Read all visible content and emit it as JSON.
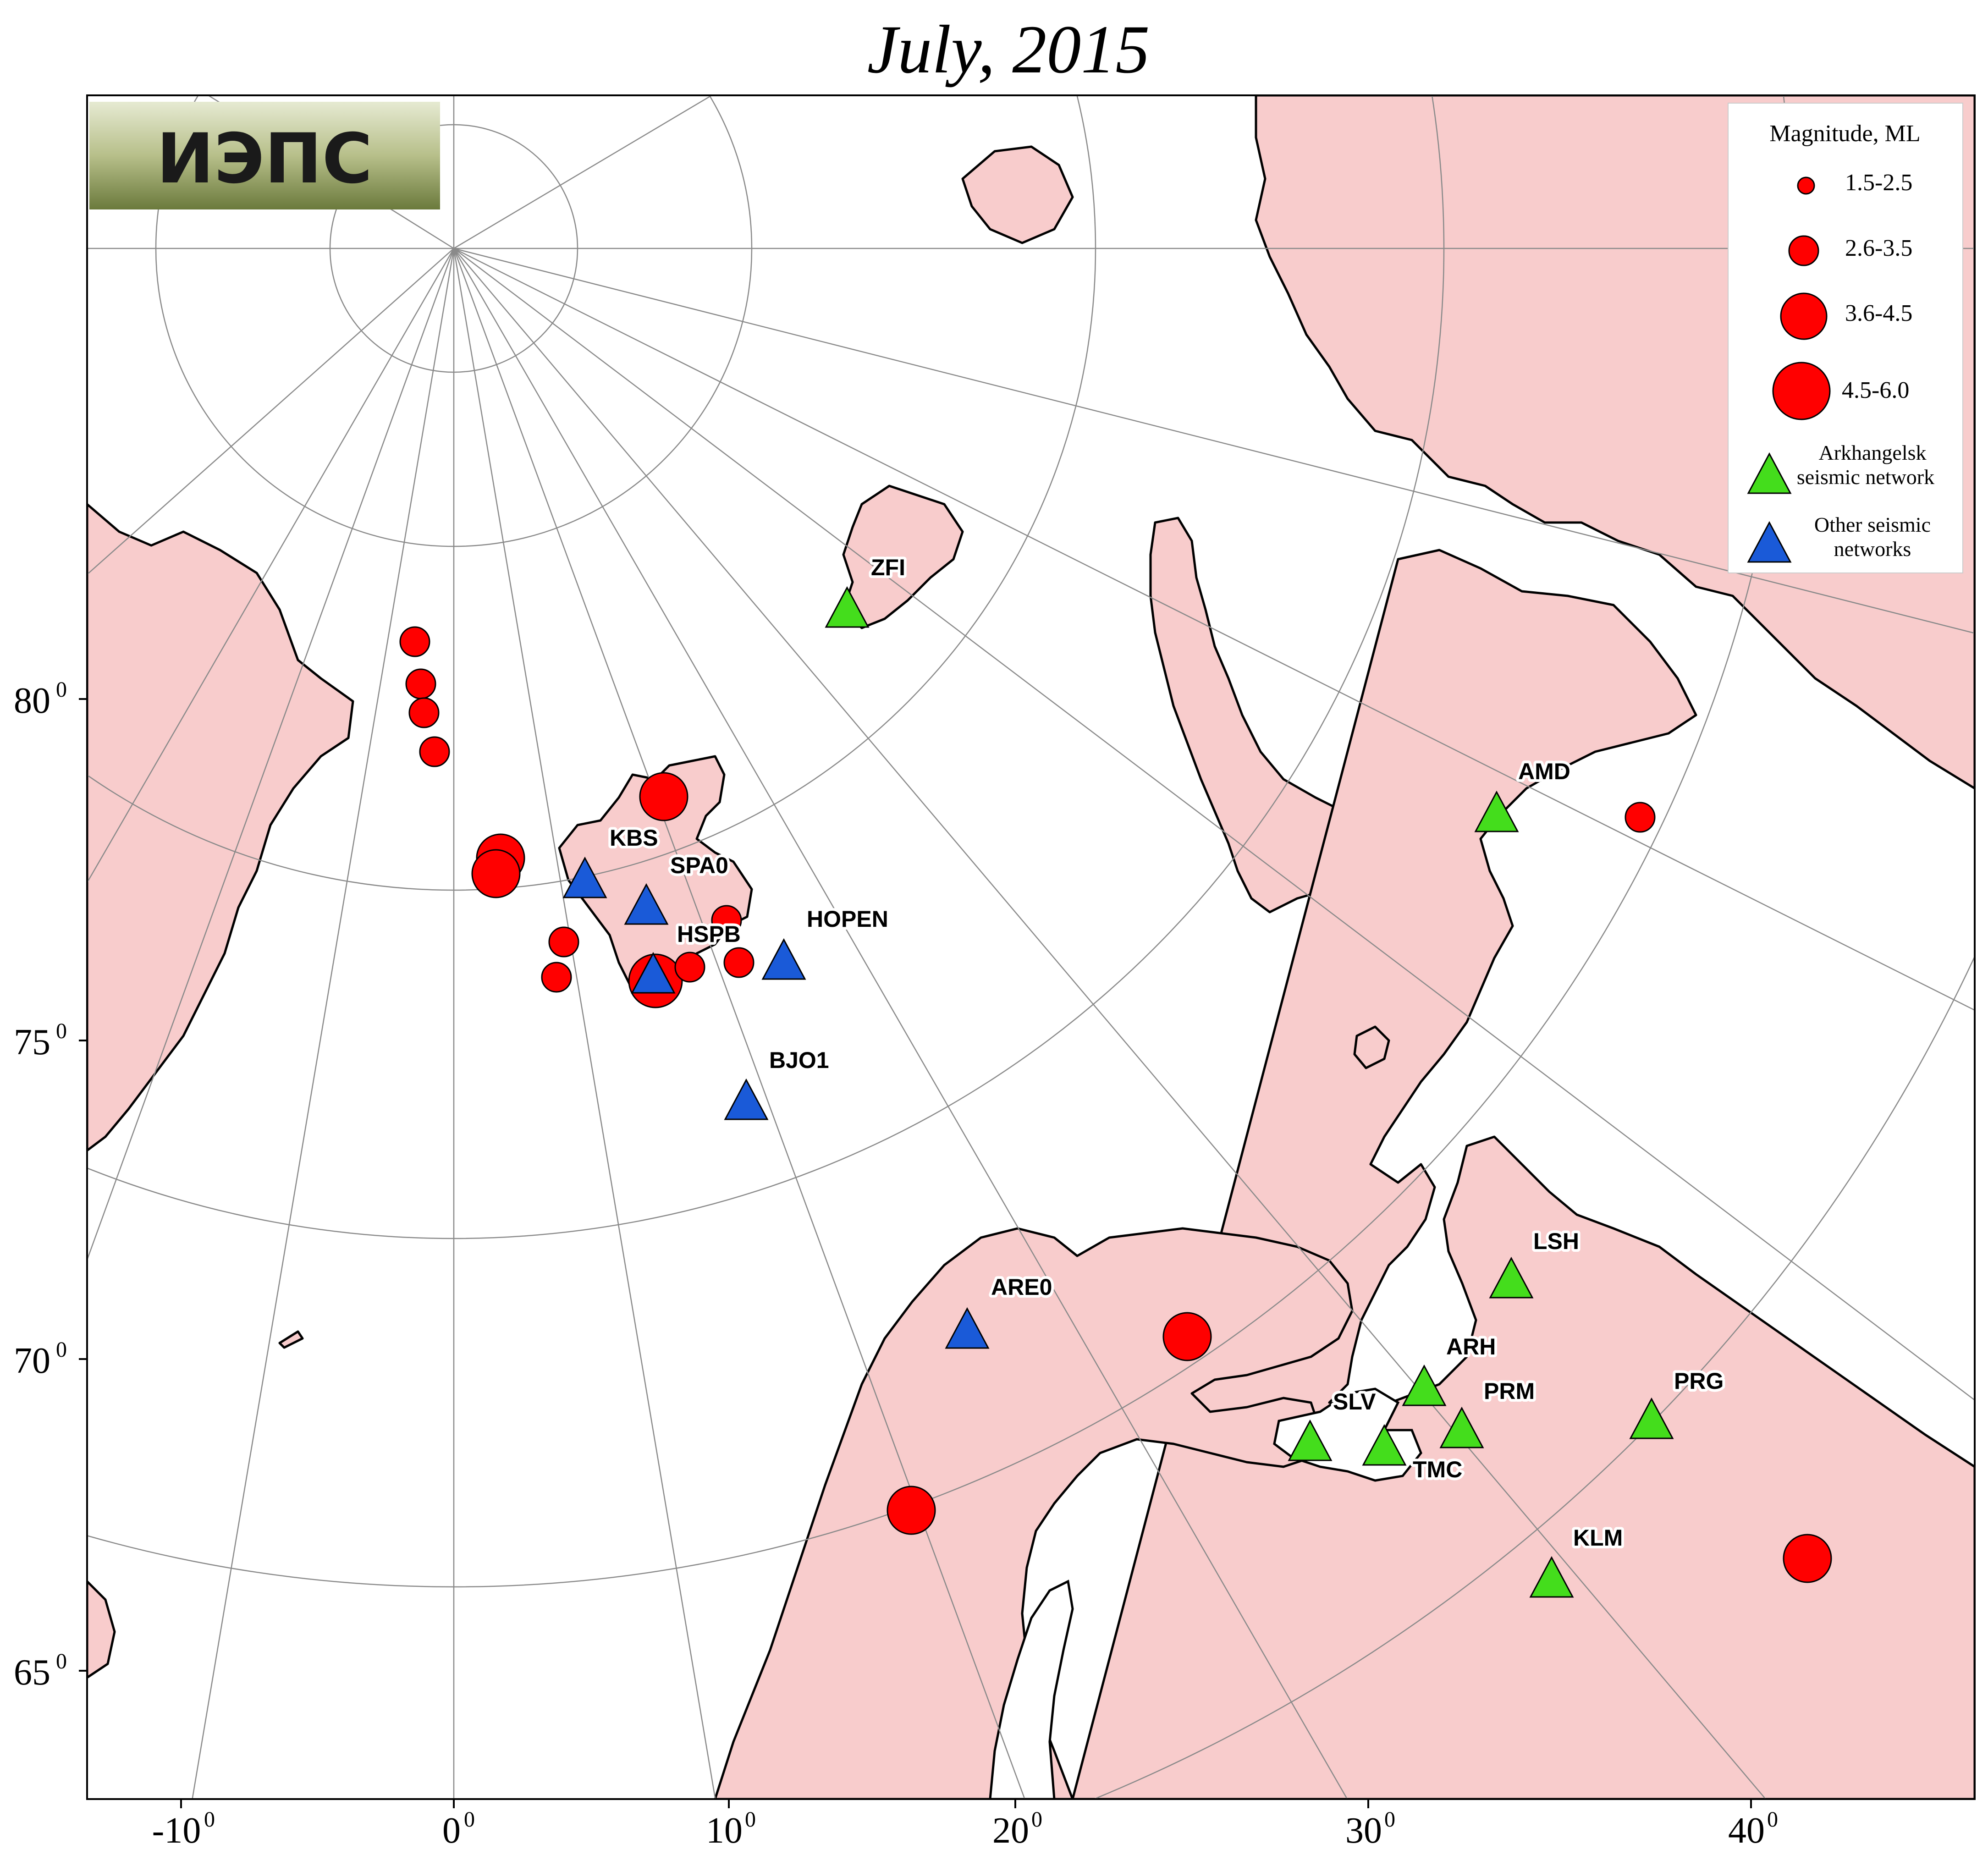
{
  "title": "July, 2015",
  "logo": {
    "text": "ИЭПС"
  },
  "axes": {
    "lon_ticks": [
      {
        "label": "-10",
        "sup": "0"
      },
      {
        "label": "0",
        "sup": "0"
      },
      {
        "label": "10",
        "sup": "0"
      },
      {
        "label": "20",
        "sup": "0"
      },
      {
        "label": "30",
        "sup": "0"
      },
      {
        "label": "40",
        "sup": "0"
      }
    ],
    "lat_ticks": [
      {
        "label": "80",
        "sup": "0"
      },
      {
        "label": "75",
        "sup": "0"
      },
      {
        "label": "70",
        "sup": "0"
      },
      {
        "label": "65",
        "sup": "0"
      }
    ]
  },
  "legend": {
    "title": "Magnitude, ML",
    "classes": [
      "1.5-2.5",
      "2.6-3.5",
      "3.6-4.5",
      "4.5-6.0"
    ],
    "arkh_label_1": "Arkhangelsk",
    "arkh_label_2": "seismic network",
    "other_label_1": "Other seismic",
    "other_label_2": "networks"
  },
  "colors": {
    "land": "#f8cccc",
    "sea": "#ffffff",
    "earthquake": "#ff0000",
    "arkhangelsk_station": "#44dd1c",
    "other_station": "#1a5ad8"
  },
  "stations": [
    {
      "code": "ZFI",
      "network": "arkhangelsk",
      "lat": 80.6,
      "lon": 58.0
    },
    {
      "code": "AMD",
      "network": "arkhangelsk",
      "lat": 69.7,
      "lon": 61.6
    },
    {
      "code": "LSH",
      "network": "arkhangelsk",
      "lat": 64.7,
      "lon": 45.6
    },
    {
      "code": "ARH",
      "network": "arkhangelsk",
      "lat": 64.6,
      "lon": 40.5
    },
    {
      "code": "PRM",
      "network": "arkhangelsk",
      "lat": 64.0,
      "lon": 41.7
    },
    {
      "code": "SLV",
      "network": "arkhangelsk",
      "lat": 65.0,
      "lon": 35.7
    },
    {
      "code": "TMC",
      "network": "arkhangelsk",
      "lat": 64.5,
      "lon": 38.6
    },
    {
      "code": "PRG",
      "network": "arkhangelsk",
      "lat": 62.5,
      "lon": 47.9
    },
    {
      "code": "KLM",
      "network": "arkhangelsk",
      "lat": 61.9,
      "lon": 43.9
    },
    {
      "code": "KBS",
      "network": "other",
      "lat": 78.9,
      "lon": 11.9
    },
    {
      "code": "SPA0",
      "network": "other",
      "lat": 78.2,
      "lon": 16.4
    },
    {
      "code": "HSPB",
      "network": "other",
      "lat": 77.0,
      "lon": 15.5
    },
    {
      "code": "HOPEN",
      "network": "other",
      "lat": 76.5,
      "lon": 25.0
    },
    {
      "code": "BJO1",
      "network": "other",
      "lat": 74.5,
      "lon": 19.0
    },
    {
      "code": "ARE0",
      "network": "other",
      "lat": 69.5,
      "lon": 25.5
    }
  ],
  "earthquakes": [
    {
      "lat": 81.3,
      "lon": -3.0,
      "mag_class": "2.6-3.5"
    },
    {
      "lat": 80.9,
      "lon": -2.5,
      "mag_class": "2.6-3.5"
    },
    {
      "lat": 80.6,
      "lon": -2.0,
      "mag_class": "2.6-3.5"
    },
    {
      "lat": 80.0,
      "lon": -1.0,
      "mag_class": "2.6-3.5"
    },
    {
      "lat": 79.8,
      "lon": 17.0,
      "mag_class": "3.6-4.5"
    },
    {
      "lat": 79.0,
      "lon": 2.0,
      "mag_class": "4.5-6.0"
    },
    {
      "lat": 78.8,
      "lon": 2.5,
      "mag_class": "4.5-6.0"
    },
    {
      "lat": 77.6,
      "lon": 9.0,
      "mag_class": "2.6-3.5"
    },
    {
      "lat": 77.2,
      "lon": 8.0,
      "mag_class": "2.6-3.5"
    },
    {
      "lat": 77.5,
      "lon": 19.0,
      "mag_class": "2.6-3.5"
    },
    {
      "lat": 77.0,
      "lon": 20.0,
      "mag_class": "2.6-3.5"
    },
    {
      "lat": 77.0,
      "lon": 15.5,
      "mag_class": "4.5-6.0"
    },
    {
      "lat": 76.8,
      "lon": 17.0,
      "mag_class": "2.6-3.5"
    },
    {
      "lat": 73.0,
      "lon": 66.0,
      "mag_class": "2.6-3.5"
    },
    {
      "lat": 69.0,
      "lon": 33.0,
      "mag_class": "4.5-6.0"
    },
    {
      "lat": 64.6,
      "lon": 17.3,
      "mag_class": "4.5-6.0"
    },
    {
      "lat": 61.3,
      "lon": 54.0,
      "mag_class": "4.5-6.0"
    }
  ]
}
